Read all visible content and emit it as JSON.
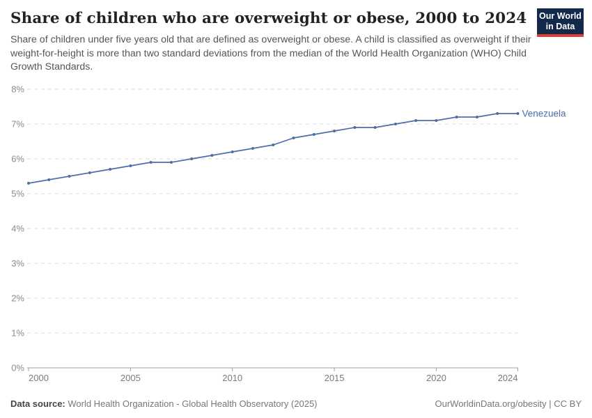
{
  "header": {
    "title": "Share of children who are overweight or obese, 2000 to 2024",
    "subtitle": "Share of children under five years old that are defined as overweight or obese. A child is classified as overweight if their weight-for-height is more than two standard deviations from the median of the World Health Organization (WHO) Child Growth Standards.",
    "logo": {
      "line1": "Our World",
      "line2": "in Data"
    }
  },
  "colors": {
    "accent": "#4C6DA9",
    "logo_bg": "#12294B",
    "logo_red": "#DC3E32",
    "grid": "#DBDBDB",
    "axis": "#A0A0A0",
    "y_label": "#8C8C8C",
    "x_label": "#7A7A7A"
  },
  "chart_data": {
    "type": "line",
    "title": "Share of children who are overweight or obese, 2000 to 2024",
    "x": [
      2000,
      2001,
      2002,
      2003,
      2004,
      2005,
      2006,
      2007,
      2008,
      2009,
      2010,
      2011,
      2012,
      2013,
      2014,
      2015,
      2016,
      2017,
      2018,
      2019,
      2020,
      2021,
      2022,
      2023,
      2024
    ],
    "series": [
      {
        "name": "Venezuela",
        "color": "#4C6DA9",
        "values": [
          5.3,
          5.4,
          5.5,
          5.6,
          5.7,
          5.8,
          5.9,
          5.9,
          6.0,
          6.1,
          6.2,
          6.3,
          6.4,
          6.6,
          6.7,
          6.8,
          6.9,
          6.9,
          7.0,
          7.1,
          7.1,
          7.2,
          7.2,
          7.3,
          7.3
        ]
      }
    ],
    "xlim": [
      2000,
      2024
    ],
    "ylim": [
      0,
      8
    ],
    "x_tick_labels": [
      "2000",
      "2005",
      "2010",
      "2015",
      "2020",
      "2024"
    ],
    "y_tick_labels": [
      "0%",
      "1%",
      "2%",
      "3%",
      "4%",
      "5%",
      "6%",
      "7%",
      "8%"
    ],
    "grid": "horizontal-dashed",
    "legend_position": "end-of-line"
  },
  "footer": {
    "source_label": "Data source:",
    "source_text": " World Health Organization - Global Health Observatory (2025)",
    "credit": "OurWorldinData.org/obesity | CC BY"
  }
}
